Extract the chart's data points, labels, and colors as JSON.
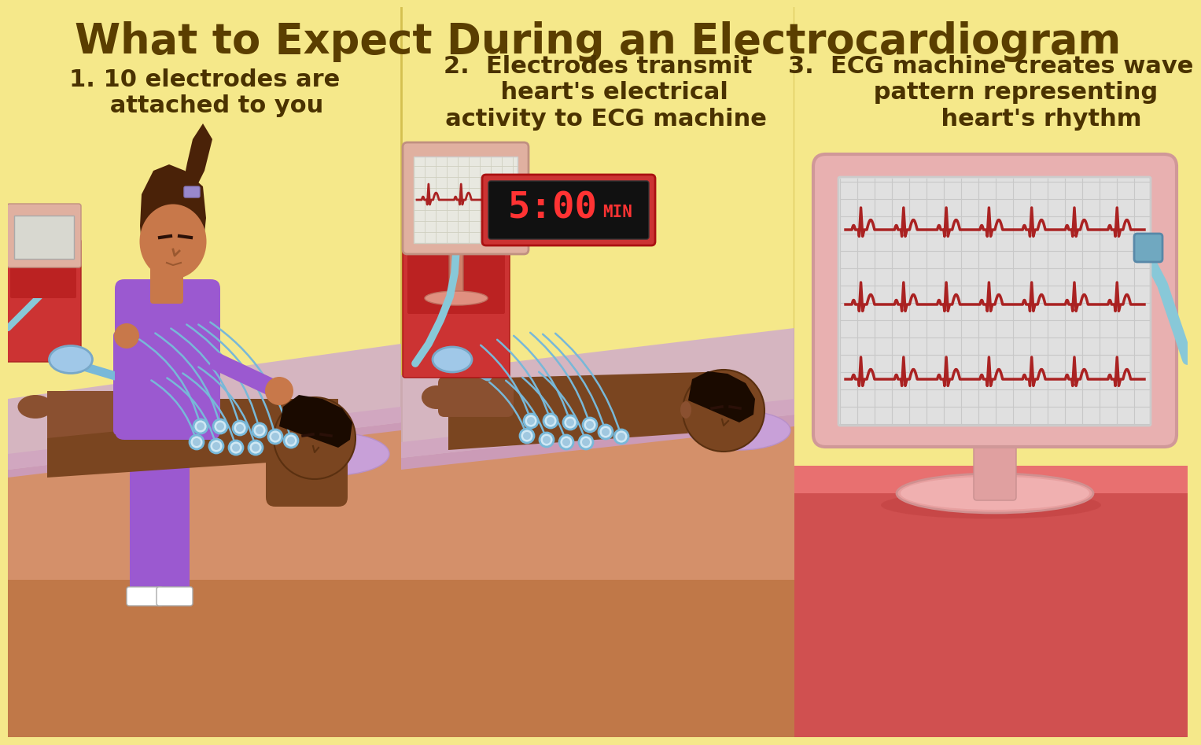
{
  "title": "What to Expect During an Electrocardiogram",
  "title_color": "#5a3e00",
  "title_fontsize": 38,
  "bg_color": "#f5e88a",
  "divider_color": "#d4c050",
  "step1_text": "1. 10 electrodes are\n   attached to you",
  "step2_text": "2.  Electrodes transmit\n    heart's electrical\n  activity to ECG machine",
  "step3_text": "3.  ECG machine creates wave\n      pattern representing\n            heart's rhythm",
  "step_text_color": "#4a3200",
  "step_text_fontsize": 22,
  "skin_dark": "#7a4520",
  "skin_medium": "#a05a28",
  "skin_patient": "#8b4513",
  "nurse_purple": "#9b59d0",
  "nurse_skin": "#c8784a",
  "nurse_hair": "#3a1a05",
  "bed_orange": "#d4906a",
  "bed_light": "#e8b888",
  "pillow_color": "#c8a0d8",
  "sheet_color": "#e0c8b0",
  "electrode_color": "#90c8e8",
  "wire_color": "#78b8d8",
  "monitor_body_pink": "#e8b0b0",
  "monitor_screen_bg": "#e8e8e8",
  "monitor_grid": "#cccccc",
  "ecg_red": "#aa2222",
  "floor_red": "#e06060",
  "floor_dark_red": "#cc4444",
  "table_red": "#cc3333",
  "timer_bg": "#222222",
  "timer_border": "#aa3333",
  "timer_text_color": "#ff3333",
  "timer_text": "5:00",
  "timer_min": "MIN",
  "cable_blue": "#88c8d8",
  "stand_pink": "#e0a0a0",
  "monitor2_body": "#d4956a",
  "monitor2_screen": "#f0e8e0",
  "lavender_hair_clip": "#9988cc",
  "patient_hair": "#1a0a00"
}
